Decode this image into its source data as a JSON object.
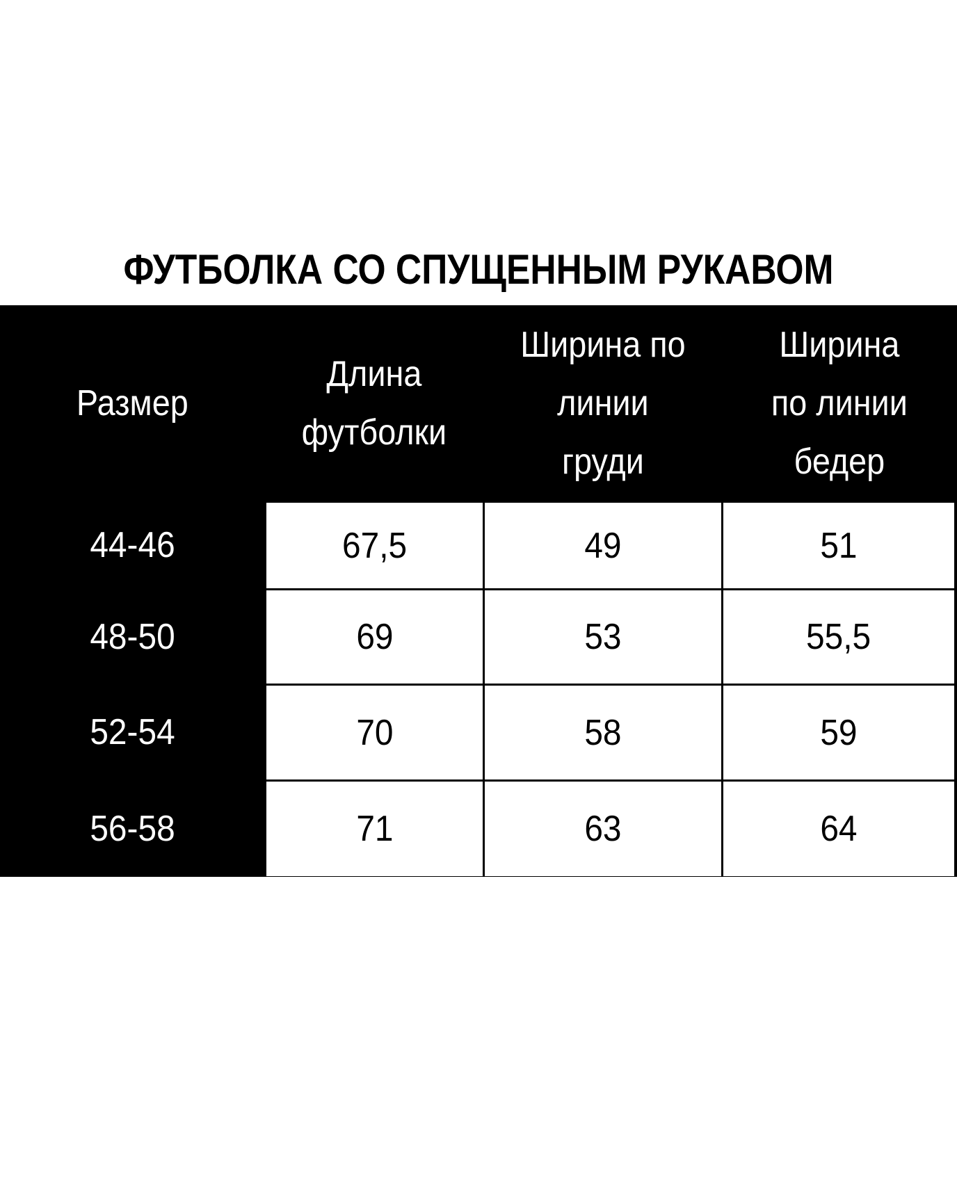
{
  "title": "ФУТБОЛКА СО СПУЩЕННЫМ РУКАВОМ",
  "table": {
    "headers": [
      "Размер",
      "Длина\nфутболки",
      "Ширина по\nлинии\nгруди",
      "Ширина\nпо линии\nбедер"
    ],
    "rows": [
      [
        "44-46",
        "67,5",
        "49",
        "51"
      ],
      [
        "48-50",
        "69",
        "53",
        "55,5"
      ],
      [
        "52-54",
        "70",
        "58",
        "59"
      ],
      [
        "56-58",
        "71",
        "63",
        "64"
      ]
    ]
  }
}
